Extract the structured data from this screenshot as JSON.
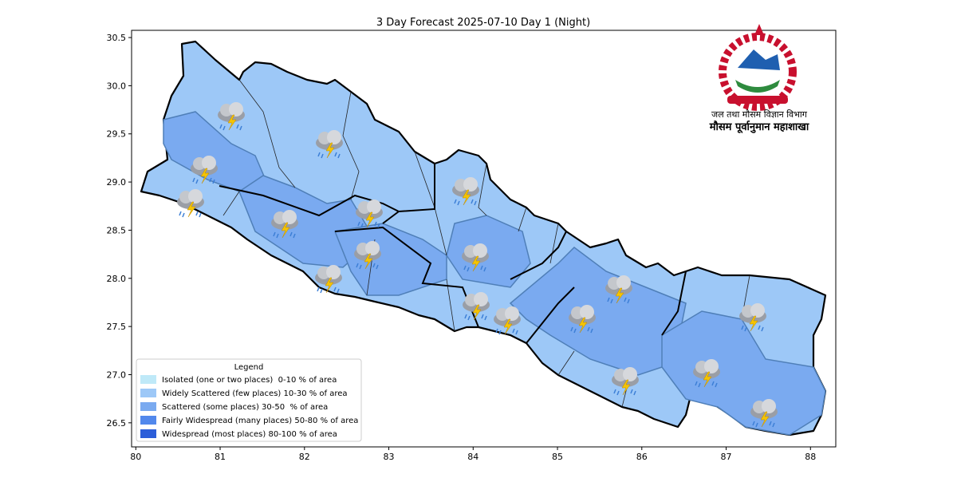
{
  "title": "3 Day Forecast 2025-07-10 Day 1 (Night)",
  "header": {
    "line1": "जल तथा मौसम विज्ञान विभाग",
    "line2": "मौसम पूर्वानुमान महाशाखा"
  },
  "map": {
    "xlim": [
      79.95,
      88.3
    ],
    "ylim": [
      26.25,
      30.575
    ],
    "xticks": [
      80,
      81,
      82,
      83,
      84,
      85,
      86,
      87,
      88
    ],
    "yticks": [
      26.5,
      {
        "value": 27.0,
        "label": "27.0"
      },
      27.5,
      {
        "value": 28.0,
        "label": "28.0"
      },
      28.5,
      {
        "value": 29.0,
        "label": "29.0"
      },
      29.5,
      {
        "value": 30.0,
        "label": "30.0"
      },
      30.5
    ]
  },
  "legend": {
    "title": "Legend",
    "items": [
      {
        "label": "Isolated (one or two places)  0-10 % of area",
        "color": "#bfe9f8"
      },
      {
        "label": "Widely Scattered (few places) 10-30 % of area",
        "color": "#9dc8f7"
      },
      {
        "label": "Scattered (some places) 30-50  % of area",
        "color": "#7aaaf0"
      },
      {
        "label": "Fairly Widespread (many places) 50-80 % of area",
        "color": "#5288ec"
      },
      {
        "label": "Widespread (most places) 80-100 % of area",
        "color": "#2c5ed9"
      }
    ]
  }
}
